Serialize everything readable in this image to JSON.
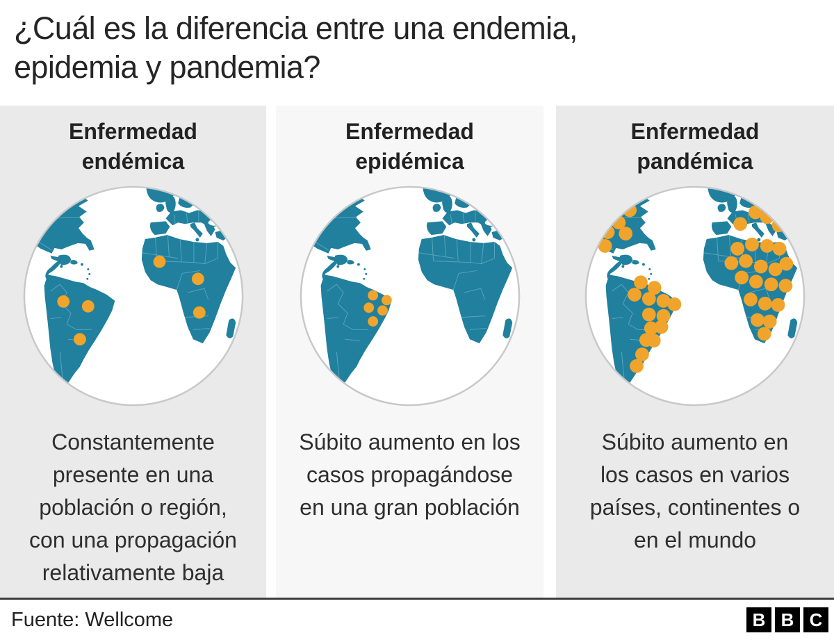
{
  "title": {
    "lines": [
      "¿Cuál es la diferencia entre una endemia,",
      "epidemia y pandemia?"
    ]
  },
  "panels": [
    {
      "id": "endemic",
      "heading_line1": "Enfermedad",
      "heading_line2": "endémica",
      "description": "Constantemente presente en una población o región, con una propagación relativamente baja",
      "description_lines": [
        "Constantemente",
        "presente en una",
        "población o región,",
        "con una propagación",
        "relativamente baja"
      ],
      "bg": "#eaeaeb",
      "dot_radius": 9,
      "dots": [
        [
          63,
          173
        ],
        [
          99,
          180
        ],
        [
          87,
          228
        ],
        [
          203,
          115
        ],
        [
          259,
          140
        ],
        [
          261,
          189
        ]
      ]
    },
    {
      "id": "epidemic",
      "heading_line1": "Enfermedad",
      "heading_line2": "epidémica",
      "description": "Súbito aumento en los casos propagándose en una gran población",
      "description_lines": [
        "Súbito aumento en los",
        "casos propagándose",
        "en una gran población"
      ],
      "bg": "#f7f7f8",
      "dot_radius": 7.5,
      "dots": [
        [
          111,
          164
        ],
        [
          131,
          171
        ],
        [
          105,
          182
        ],
        [
          125,
          186
        ],
        [
          111,
          202
        ]
      ]
    },
    {
      "id": "pandemic",
      "heading_line1": "Enfermedad",
      "heading_line2": "pandémica",
      "description": "Súbito aumento en los casos en varios países, continentes o en el mundo",
      "description_lines": [
        "Súbito aumento en",
        "los casos en varios",
        "países, continentes o",
        "en el mundo"
      ],
      "bg": "#eaeaeb",
      "dot_radius": 10,
      "dots": [
        [
          80,
          18
        ],
        [
          58,
          24
        ],
        [
          70,
          40
        ],
        [
          46,
          42
        ],
        [
          28,
          54
        ],
        [
          54,
          58
        ],
        [
          64,
          74
        ],
        [
          38,
          72
        ],
        [
          22,
          84
        ],
        [
          34,
          92
        ],
        [
          253,
          43
        ],
        [
          231,
          60
        ],
        [
          270,
          50
        ],
        [
          287,
          62
        ],
        [
          227,
          96
        ],
        [
          248,
          90
        ],
        [
          270,
          92
        ],
        [
          288,
          96
        ],
        [
          218,
          117
        ],
        [
          239,
          114
        ],
        [
          261,
          122
        ],
        [
          282,
          126
        ],
        [
          298,
          118
        ],
        [
          233,
          138
        ],
        [
          254,
          144
        ],
        [
          276,
          148
        ],
        [
          297,
          150
        ],
        [
          246,
          170
        ],
        [
          267,
          176
        ],
        [
          286,
          178
        ],
        [
          256,
          200
        ],
        [
          274,
          202
        ],
        [
          266,
          220
        ],
        [
          86,
          145
        ],
        [
          106,
          153
        ],
        [
          77,
          163
        ],
        [
          98,
          169
        ],
        [
          119,
          172
        ],
        [
          135,
          177
        ],
        [
          98,
          192
        ],
        [
          119,
          194
        ],
        [
          101,
          212
        ],
        [
          116,
          210
        ],
        [
          94,
          229
        ],
        [
          105,
          230
        ],
        [
          88,
          250
        ],
        [
          80,
          267
        ]
      ]
    }
  ],
  "footer": {
    "source": "Fuente: Wellcome",
    "logo_letters": [
      "B",
      "B",
      "C"
    ]
  },
  "colors": {
    "land": "#20809E",
    "border": "#66abc2",
    "dot": "#F0A42C",
    "ring": "#c6c8c9",
    "divider": "#3e3e3e",
    "text": "#262626"
  }
}
